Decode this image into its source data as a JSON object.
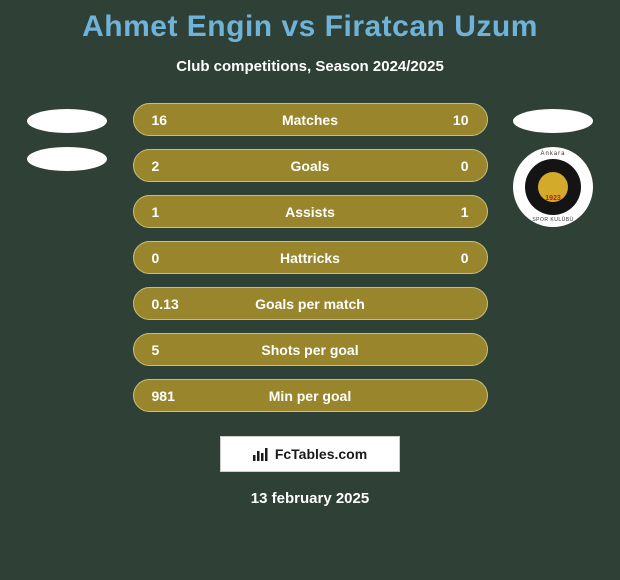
{
  "background_color": "#2f4037",
  "accent_color": "#99862c",
  "title_color": "#6fb4d8",
  "row_border_color": "#cbbf7a",
  "title": "Ahmet Engin vs Firatcan Uzum",
  "subtitle": "Club competitions, Season 2024/2025",
  "date": "13 february 2025",
  "watermark": "FcTables.com",
  "left_team": {
    "badge_style": "oval-only",
    "oval_count": 2
  },
  "right_team": {
    "badge_style": "oval-and-club",
    "oval_count": 1,
    "club": {
      "outer_bg": "#ffffff",
      "inner_bg": "#141414",
      "core_bg": "#d4aa2a",
      "text_top": "Ankara",
      "text_bottom": "SPOR KULÜBÜ",
      "year": "1923"
    }
  },
  "stat_rows": [
    {
      "label": "Matches",
      "left": "16",
      "right": "10"
    },
    {
      "label": "Goals",
      "left": "2",
      "right": "0"
    },
    {
      "label": "Assists",
      "left": "1",
      "right": "1"
    },
    {
      "label": "Hattricks",
      "left": "0",
      "right": "0"
    },
    {
      "label": "Goals per match",
      "left": "0.13",
      "right": ""
    },
    {
      "label": "Shots per goal",
      "left": "5",
      "right": ""
    },
    {
      "label": "Min per goal",
      "left": "981",
      "right": ""
    }
  ],
  "typography": {
    "title_fontsize": 30,
    "subtitle_fontsize": 15,
    "row_fontsize": 14
  }
}
